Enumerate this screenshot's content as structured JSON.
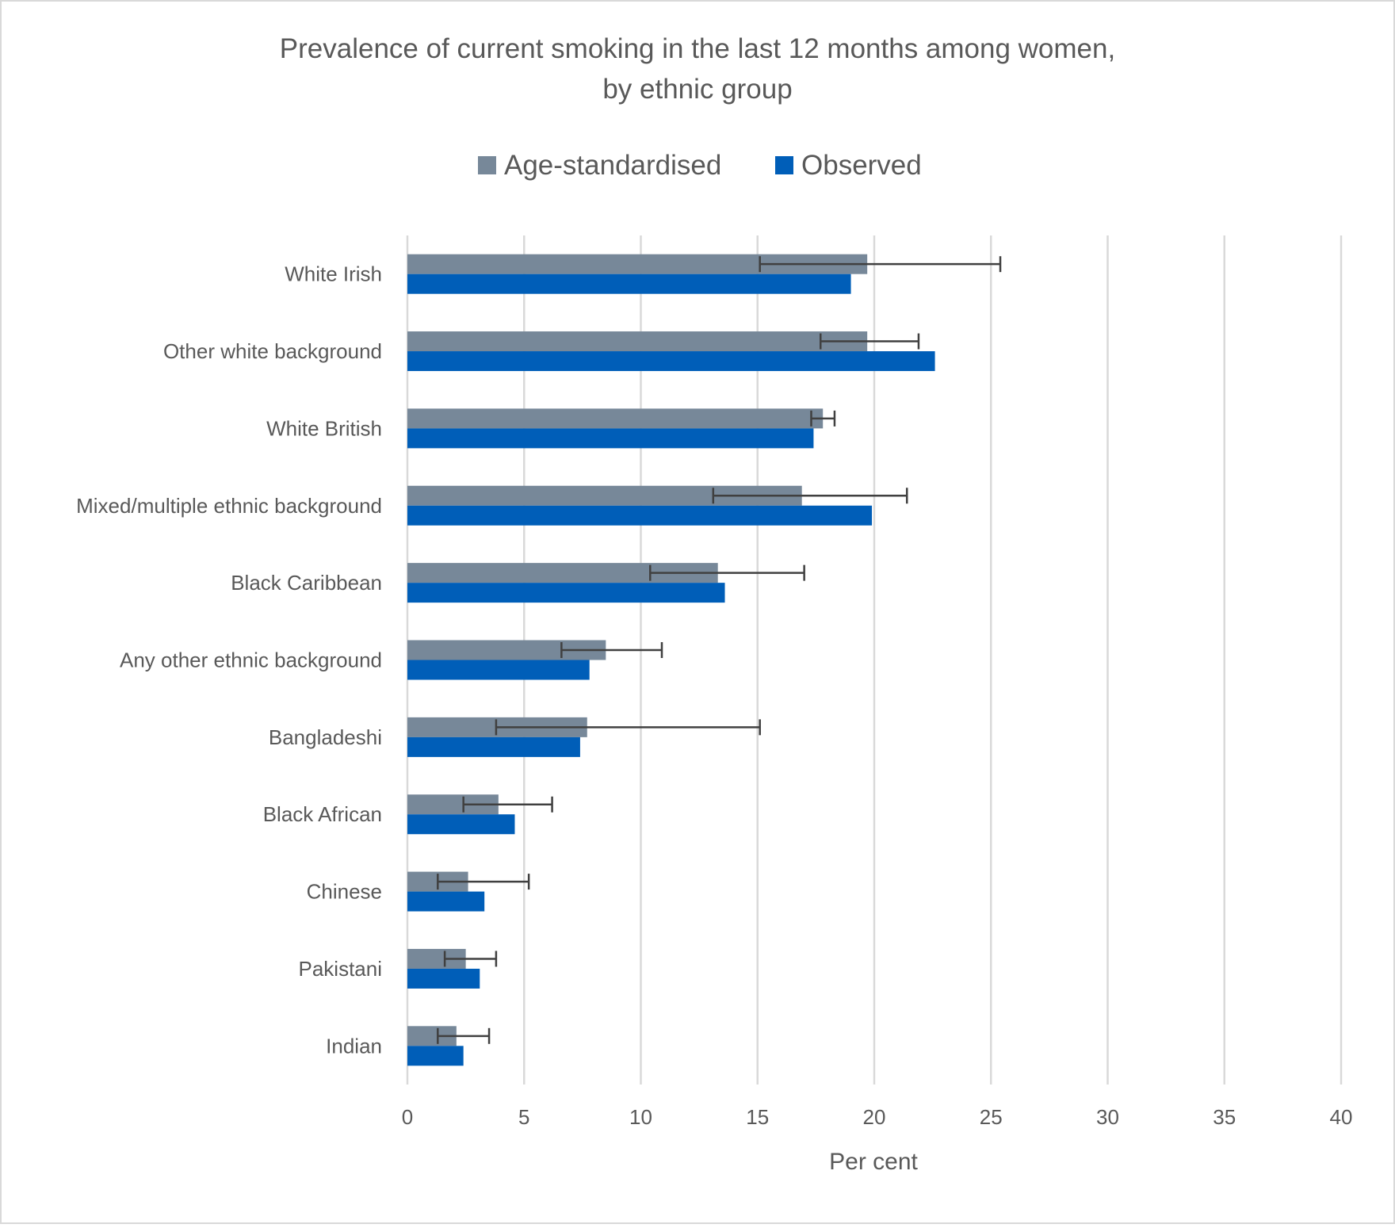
{
  "chart_data": {
    "type": "bar",
    "orientation": "horizontal",
    "title_lines": [
      "Prevalence of current smoking in the last 12 months among women,",
      "by ethnic group"
    ],
    "xlabel": "Per cent",
    "ylabel": "",
    "xlim": [
      0,
      40
    ],
    "ticks": [
      0,
      5,
      10,
      15,
      20,
      25,
      30,
      35,
      40
    ],
    "grid": "vertical",
    "legend_position": "top",
    "categories": [
      "White Irish",
      "Other white background",
      "White British",
      "Mixed/multiple ethnic background",
      "Black Caribbean",
      "Any other ethnic background",
      "Bangladeshi",
      "Black African",
      "Chinese",
      "Pakistani",
      "Indian"
    ],
    "series": [
      {
        "name": "Age-standardised",
        "color": "#778899",
        "values": [
          19.7,
          19.7,
          17.8,
          16.9,
          13.3,
          8.5,
          7.7,
          3.9,
          2.6,
          2.5,
          2.1
        ],
        "ci_lower": [
          15.1,
          17.7,
          17.3,
          13.1,
          10.4,
          6.6,
          3.8,
          2.4,
          1.3,
          1.6,
          1.3
        ],
        "ci_upper": [
          25.4,
          21.9,
          18.3,
          21.4,
          17.0,
          10.9,
          15.1,
          6.2,
          5.2,
          3.8,
          3.5
        ]
      },
      {
        "name": "Observed",
        "color": "#005EB8",
        "values": [
          19.0,
          22.6,
          17.4,
          19.9,
          13.6,
          7.8,
          7.4,
          4.6,
          3.3,
          3.1,
          2.4
        ]
      }
    ]
  }
}
